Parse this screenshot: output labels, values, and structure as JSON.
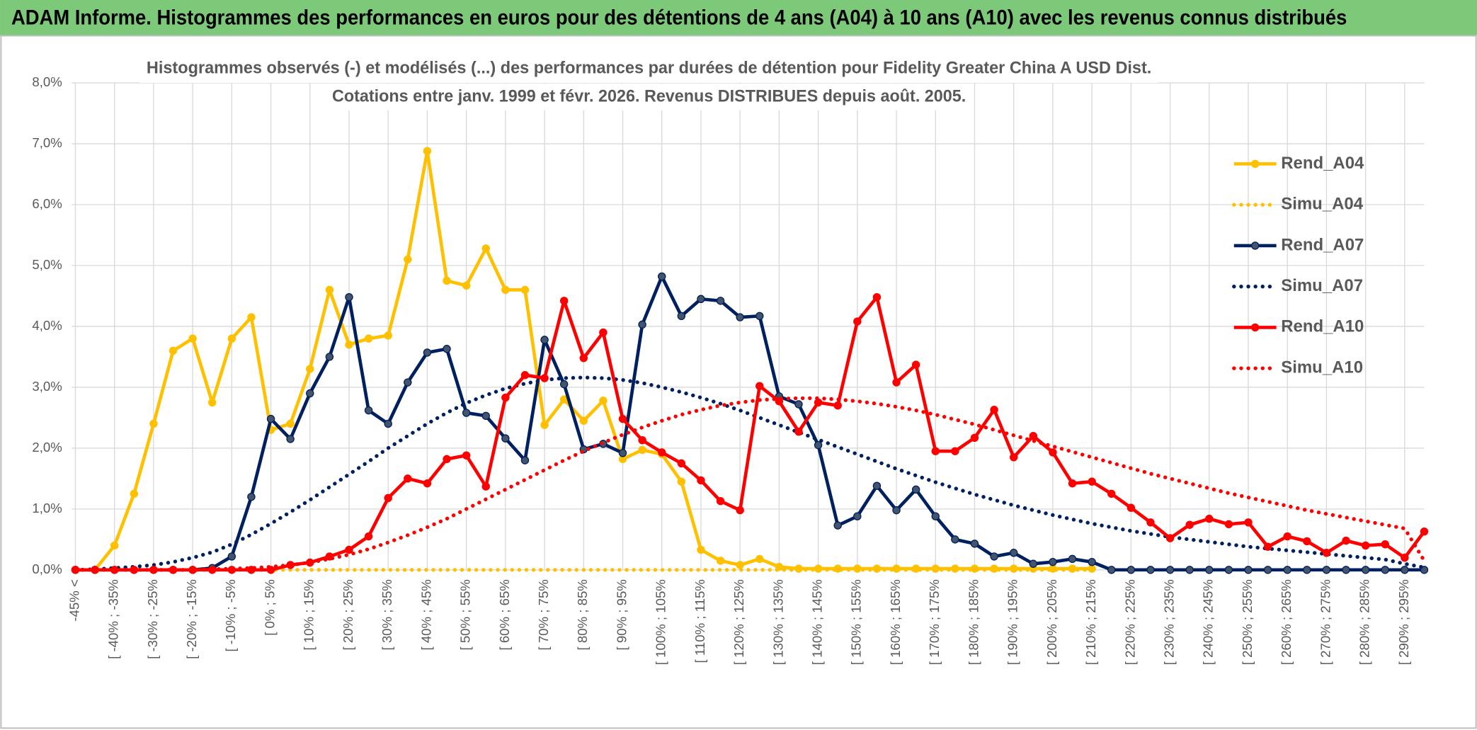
{
  "page_title": "ADAM Informe. Histogrammes des performances en euros pour des détentions de 4 ans (A04) à 10 ans (A10) avec les revenus connus distribués",
  "chart_data": {
    "type": "line",
    "title": [
      "Histogrammes observés (-) et modélisés (...) des performances par durées de détention pour Fidelity Greater China A USD Dist.",
      "Cotations entre janv. 1999 et févr. 2026. Revenus DISTRIBUES depuis août. 2005."
    ],
    "categories": [
      "-45% <",
      null,
      "[ -40% ; -35%",
      null,
      "[ -30% ; -25%",
      null,
      "[ -20% ; -15%",
      null,
      "[ -10% ; -5%",
      null,
      "[ 0% ; 5%",
      null,
      "[ 10% ; 15%",
      null,
      "[ 20% ; 25%",
      null,
      "[ 30% ; 35%",
      null,
      "[ 40% ; 45%",
      null,
      "[ 50% ; 55%",
      null,
      "[ 60% ; 65%",
      null,
      "[ 70% ; 75%",
      null,
      "[ 80% ; 85%",
      null,
      "[ 90% ; 95%",
      null,
      "[ 100% ; 105%",
      null,
      "[ 110% ; 115%",
      null,
      "[ 120% ; 125%",
      null,
      "[ 130% ; 135%",
      null,
      "[ 140% ; 145%",
      null,
      "[ 150% ; 155%",
      null,
      "[ 160% ; 165%",
      null,
      "[ 170% ; 175%",
      null,
      "[ 180% ; 185%",
      null,
      "[ 190% ; 195%",
      null,
      "[ 200% ; 205%",
      null,
      "[ 210% ; 215%",
      null,
      "[ 220% ; 225%",
      null,
      "[ 230% ; 235%",
      null,
      "[ 240% ; 245%",
      null,
      "[ 250% ; 255%",
      null,
      "[ 260% ; 265%",
      null,
      "[ 270% ; 275%",
      null,
      "[ 280% ; 285%",
      null,
      "[ 290% ; 295%",
      null
    ],
    "series": [
      {
        "name": "Rend_A04",
        "color": "#ffc000",
        "style": "solid",
        "values": [
          0,
          0,
          0.4,
          1.25,
          2.4,
          3.6,
          3.8,
          2.75,
          3.8,
          4.15,
          2.3,
          2.4,
          3.3,
          4.6,
          3.7,
          3.8,
          3.85,
          5.1,
          6.88,
          4.75,
          4.67,
          5.28,
          4.6,
          4.6,
          2.38,
          2.8,
          2.45,
          2.78,
          1.82,
          1.97,
          1.9,
          1.45,
          0.33,
          0.15,
          0.08,
          0.18,
          0.05,
          0.02,
          0.02,
          0.02,
          0.02,
          0.02,
          0.02,
          0.02,
          0.02,
          0.02,
          0.02,
          0.02,
          0.02,
          0.02,
          0.02,
          0.02,
          0.02,
          null,
          null,
          null,
          null,
          null,
          null,
          null,
          null,
          null,
          null,
          null,
          null,
          null,
          null,
          null,
          null,
          null
        ]
      },
      {
        "name": "Simu_A04",
        "color": "#ffc000",
        "style": "dotted",
        "values": [
          0,
          0,
          0,
          0,
          0,
          0,
          0,
          0,
          0,
          0,
          0,
          0,
          0,
          0,
          0,
          0,
          0,
          0,
          0,
          0,
          0,
          0,
          0,
          0,
          0,
          0,
          0,
          0,
          0,
          0,
          0,
          0,
          0,
          0,
          0,
          0,
          0,
          0,
          0,
          0,
          0,
          0,
          0,
          0,
          0,
          0,
          0,
          0,
          0,
          0,
          0,
          0,
          0,
          null,
          null,
          null,
          null,
          null,
          null,
          null,
          null,
          null,
          null,
          null,
          null,
          null,
          null,
          null,
          null,
          null
        ]
      },
      {
        "name": "Rend_A07",
        "color": "#002060",
        "marker_color": "#44546a",
        "style": "solid",
        "values": [
          0,
          0,
          0,
          0,
          0,
          0,
          0,
          0.03,
          0.22,
          1.2,
          2.48,
          2.15,
          2.9,
          3.5,
          4.48,
          2.62,
          2.4,
          3.08,
          3.57,
          3.63,
          2.58,
          2.53,
          2.16,
          1.8,
          3.78,
          3.05,
          1.98,
          2.07,
          1.92,
          4.03,
          4.82,
          4.17,
          4.45,
          4.42,
          4.15,
          4.17,
          2.85,
          2.72,
          2.05,
          0.73,
          0.88,
          1.38,
          0.98,
          1.32,
          0.88,
          0.5,
          0.43,
          0.22,
          0.28,
          0.1,
          0.13,
          0.18,
          0.13,
          0,
          0,
          0,
          0,
          0,
          0,
          0,
          0,
          0,
          0,
          0,
          0,
          0,
          0,
          0,
          0,
          0
        ]
      },
      {
        "name": "Simu_A07",
        "color": "#002060",
        "style": "dotted",
        "values": [
          0,
          0.01,
          0.03,
          0.05,
          0.08,
          0.13,
          0.2,
          0.29,
          0.42,
          0.58,
          0.76,
          0.95,
          1.15,
          1.36,
          1.57,
          1.78,
          2.0,
          2.2,
          2.4,
          2.58,
          2.74,
          2.87,
          2.98,
          3.06,
          3.12,
          3.15,
          3.16,
          3.15,
          3.12,
          3.07,
          3.0,
          2.92,
          2.83,
          2.73,
          2.62,
          2.5,
          2.38,
          2.26,
          2.14,
          2.02,
          1.9,
          1.78,
          1.66,
          1.55,
          1.44,
          1.34,
          1.24,
          1.15,
          1.06,
          0.98,
          0.9,
          0.83,
          0.76,
          0.7,
          0.64,
          0.59,
          0.54,
          0.5,
          0.46,
          0.42,
          0.38,
          0.35,
          0.32,
          0.29,
          0.26,
          0.23,
          0.2,
          0.17,
          0.1,
          0.04
        ]
      },
      {
        "name": "Rend_A10",
        "color": "#ff0000",
        "style": "solid",
        "values": [
          0,
          0,
          0,
          0,
          0,
          0,
          0,
          0,
          0,
          0,
          0,
          0.08,
          0.12,
          0.22,
          0.33,
          0.55,
          1.18,
          1.5,
          1.42,
          1.82,
          1.88,
          1.37,
          2.83,
          3.2,
          3.15,
          4.42,
          3.48,
          3.9,
          2.48,
          2.13,
          1.93,
          1.75,
          1.47,
          1.13,
          0.98,
          3.02,
          2.77,
          2.27,
          2.75,
          2.7,
          4.08,
          4.48,
          3.08,
          3.37,
          1.95,
          1.95,
          2.17,
          2.63,
          1.85,
          2.2,
          1.93,
          1.42,
          1.45,
          1.25,
          1.02,
          0.78,
          0.52,
          0.74,
          0.84,
          0.75,
          0.78,
          0.38,
          0.55,
          0.47,
          0.28,
          0.48,
          0.4,
          0.42,
          0.2,
          0.63
        ]
      },
      {
        "name": "Simu_A10",
        "color": "#ff0000",
        "style": "dotted",
        "values": [
          0,
          0,
          0,
          0,
          0,
          0,
          0,
          0.01,
          0.02,
          0.03,
          0.05,
          0.08,
          0.12,
          0.18,
          0.25,
          0.34,
          0.45,
          0.57,
          0.7,
          0.84,
          1.0,
          1.16,
          1.32,
          1.48,
          1.64,
          1.8,
          1.95,
          2.09,
          2.22,
          2.34,
          2.45,
          2.55,
          2.63,
          2.7,
          2.75,
          2.79,
          2.81,
          2.82,
          2.82,
          2.8,
          2.77,
          2.73,
          2.68,
          2.62,
          2.55,
          2.47,
          2.39,
          2.3,
          2.21,
          2.12,
          2.03,
          1.94,
          1.85,
          1.76,
          1.67,
          1.58,
          1.5,
          1.42,
          1.34,
          1.26,
          1.19,
          1.12,
          1.05,
          0.98,
          0.92,
          0.86,
          0.8,
          0.74,
          0.68,
          0.15
        ]
      }
    ],
    "ylim": [
      0,
      8
    ],
    "yticks": [
      {
        "value": 0,
        "label": "0,0%"
      },
      {
        "value": 1,
        "label": "1,0%"
      },
      {
        "value": 2,
        "label": "2,0%"
      },
      {
        "value": 3,
        "label": "3,0%"
      },
      {
        "value": 4,
        "label": "4,0%"
      },
      {
        "value": 5,
        "label": "5,0%"
      },
      {
        "value": 6,
        "label": "6,0%"
      },
      {
        "value": 7,
        "label": "7,0%"
      },
      {
        "value": 8,
        "label": "8,0%"
      }
    ],
    "grid": true,
    "legend": "right"
  }
}
